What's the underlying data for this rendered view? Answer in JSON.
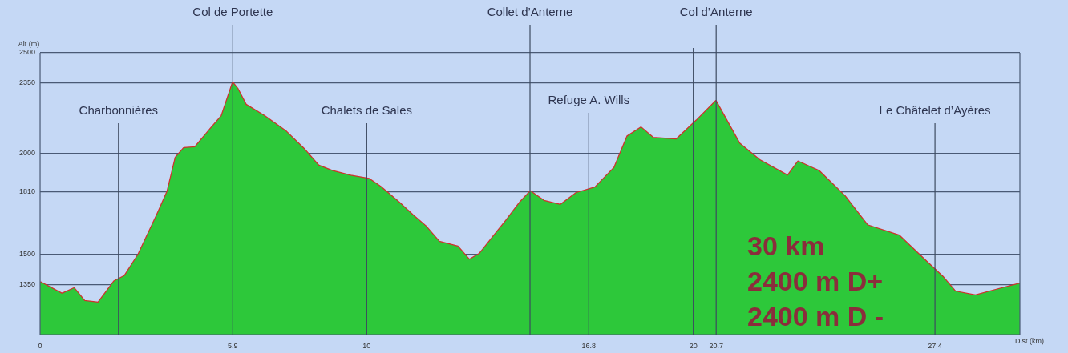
{
  "chart_data": {
    "type": "area",
    "xlabel": "Dist (km)",
    "ylabel": "Alt (m)",
    "x": [
      0,
      0.67,
      1.04,
      1.36,
      1.78,
      2.27,
      2.59,
      3.01,
      3.58,
      3.9,
      4.15,
      4.4,
      4.74,
      5.23,
      5.56,
      5.9,
      6.05,
      6.3,
      6.86,
      7.53,
      8.1,
      8.52,
      8.94,
      9.51,
      10.07,
      10.42,
      10.99,
      11.41,
      11.8,
      12.22,
      12.79,
      13.14,
      13.46,
      13.88,
      14.27,
      14.69,
      15.01,
      15.43,
      15.93,
      16.42,
      16.99,
      17.58,
      17.98,
      18.4,
      18.77,
      19.48,
      20.1,
      20.69,
      21.41,
      22.02,
      22.89,
      23.21,
      23.85,
      24.64,
      25.33,
      26.3,
      27.19,
      27.65,
      28.02,
      28.64,
      29.26,
      30
    ],
    "series": [
      {
        "color": "#2dc83a",
        "values": [
          1362,
          1304,
          1331,
          1268,
          1260,
          1366,
          1393,
          1499,
          1695,
          1812,
          1980,
          2027,
          2031,
          2125,
          2187,
          2351,
          2320,
          2242,
          2187,
          2109,
          2019,
          1941,
          1914,
          1890,
          1874,
          1835,
          1757,
          1694,
          1640,
          1562,
          1538,
          1472,
          1503,
          1589,
          1667,
          1757,
          1812,
          1765,
          1745,
          1804,
          1831,
          1929,
          2085,
          2129,
          2078,
          2070,
          2164,
          2260,
          2050,
          1968,
          1890,
          1960,
          1913,
          1788,
          1644,
          1593,
          1456,
          1386,
          1315,
          1296,
          1323,
          1354
        ]
      },
      {
        "type": "line",
        "color": "#d0312d",
        "values": [
          1362,
          1304,
          1331,
          1268,
          1260,
          1366,
          1393,
          1499,
          1695,
          1812,
          1980,
          2027,
          2031,
          2125,
          2187,
          2351,
          2320,
          2242,
          2187,
          2109,
          2019,
          1941,
          1914,
          1890,
          1874,
          1835,
          1757,
          1694,
          1640,
          1562,
          1538,
          1472,
          1503,
          1589,
          1667,
          1757,
          1812,
          1765,
          1745,
          1804,
          1831,
          1929,
          2085,
          2129,
          2078,
          2070,
          2164,
          2260,
          2050,
          1968,
          1890,
          1960,
          1913,
          1788,
          1644,
          1593,
          1456,
          1386,
          1315,
          1296,
          1323,
          1354
        ]
      }
    ],
    "xlim": [
      0,
      30
    ],
    "xticks": [
      0,
      5.9,
      10,
      16.8,
      20,
      20.7,
      27.4
    ],
    "ylim": [
      1100,
      2500
    ],
    "yticks": [
      1350,
      1500,
      1810,
      2000,
      2350,
      2500
    ],
    "grid": "y",
    "legend": false,
    "marker": "none",
    "ref_lines": [
      {
        "axis": "x",
        "value": 2.4,
        "label": "Charbonnières"
      },
      {
        "axis": "x",
        "value": 5.9,
        "label": "Col de Portette"
      },
      {
        "axis": "x",
        "value": 10,
        "label": "Chalets de Sales"
      },
      {
        "axis": "x",
        "value": 15,
        "label": "Collet d’Anterne"
      },
      {
        "axis": "x",
        "value": 16.8,
        "label": "Refuge A. Wills"
      },
      {
        "axis": "x",
        "value": 20
      },
      {
        "axis": "x",
        "value": 20.7,
        "label": "Col d’Anterne"
      },
      {
        "axis": "x",
        "value": 27.4,
        "label": "Le Châtelet d’Ayères"
      }
    ],
    "annotations": [
      "30 km",
      "2400 m D+",
      "2400 m D -"
    ]
  }
}
